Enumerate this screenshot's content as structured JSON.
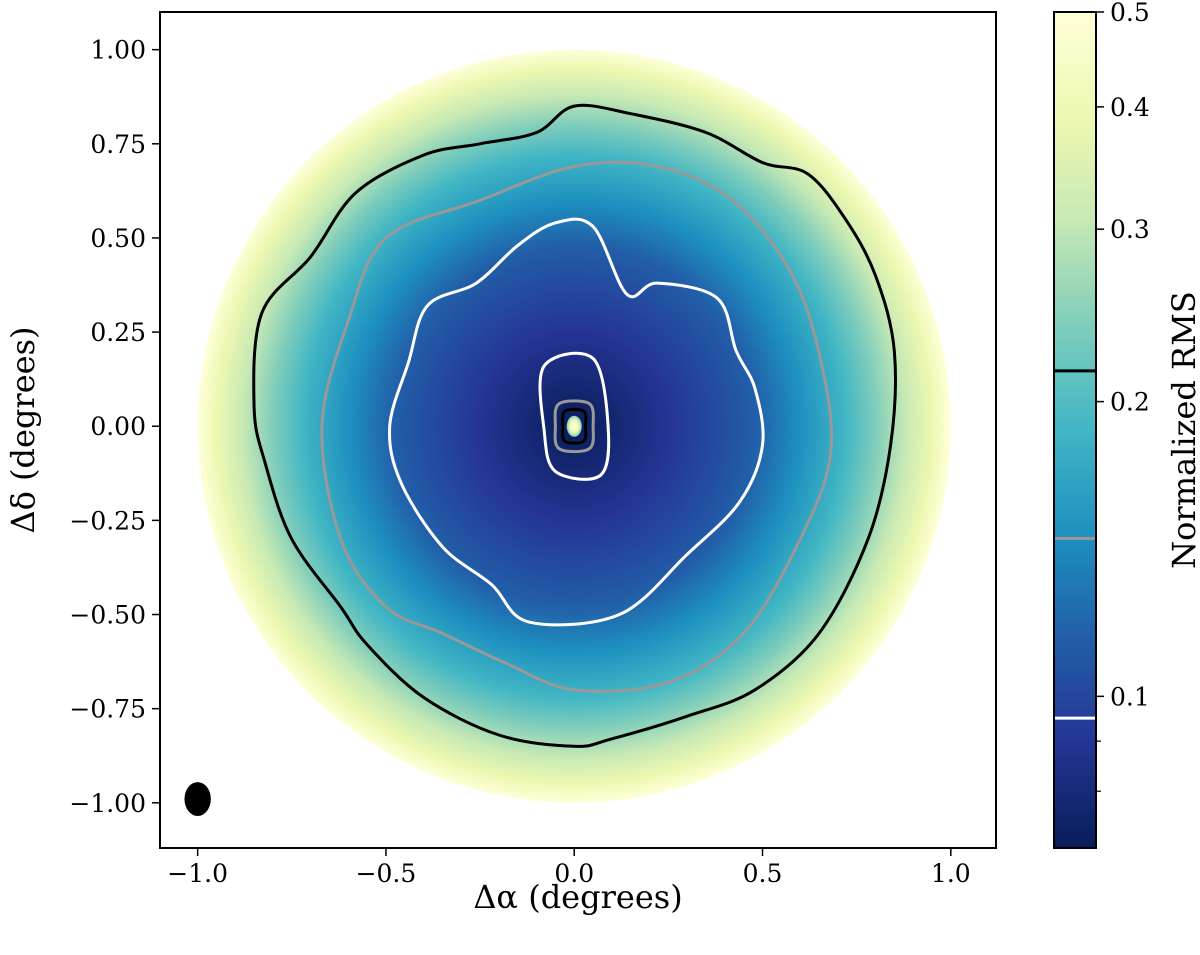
{
  "chart_data": {
    "type": "heatmap",
    "title": "",
    "xlabel": "Δα (degrees)",
    "ylabel": "Δδ (degrees)",
    "xlim": [
      -1.1,
      1.12
    ],
    "ylim": [
      -1.12,
      1.1
    ],
    "x_ticks": [
      -1.0,
      -0.5,
      0.0,
      0.5,
      1.0
    ],
    "x_tick_labels": [
      "−1.0",
      "−0.5",
      "0.0",
      "0.5",
      "1.0"
    ],
    "y_ticks": [
      1.0,
      0.75,
      0.5,
      0.25,
      0.0,
      -0.25,
      -0.5,
      -0.75,
      -1.0
    ],
    "y_tick_labels": [
      "1.00",
      "0.75",
      "0.50",
      "0.25",
      "0.00",
      "−0.25",
      "−0.50",
      "−0.75",
      "−1.00"
    ],
    "map": {
      "center": [
        0.0,
        0.0
      ],
      "field_radius_deg": 1.0,
      "value_at_edge": 0.5,
      "value_min": 0.07,
      "value_peak_center": 0.5
    },
    "colorbar": {
      "label": "Normalized RMS",
      "scale": "log",
      "range": [
        0.07,
        0.5
      ],
      "ticks": [
        0.1,
        0.2,
        0.3,
        0.4,
        0.5
      ],
      "tick_labels": [
        "0.1",
        "0.2",
        "0.3",
        "0.4",
        "0.5"
      ],
      "minor_ticks": [
        0.08,
        0.09
      ],
      "colormap": [
        "#081d58",
        "#253494",
        "#225ea8",
        "#1d91c0",
        "#41b6c4",
        "#7fcdbb",
        "#c7e9b4",
        "#edf8b1",
        "#ffffd9"
      ]
    },
    "contours": [
      {
        "level": 0.095,
        "color": "#ffffff",
        "label": "white contour",
        "outer_ring": [
          [
            -0.49,
            0.0
          ],
          [
            -0.44,
            0.17
          ],
          [
            -0.39,
            0.32
          ],
          [
            -0.26,
            0.38
          ],
          [
            -0.15,
            0.48
          ],
          [
            -0.05,
            0.54
          ],
          [
            0.05,
            0.53
          ],
          [
            0.14,
            0.35
          ],
          [
            0.22,
            0.38
          ],
          [
            0.38,
            0.34
          ],
          [
            0.43,
            0.2
          ],
          [
            0.48,
            0.1
          ],
          [
            0.5,
            -0.05
          ],
          [
            0.44,
            -0.2
          ],
          [
            0.3,
            -0.34
          ],
          [
            0.12,
            -0.5
          ],
          [
            -0.12,
            -0.52
          ],
          [
            -0.22,
            -0.42
          ],
          [
            -0.35,
            -0.32
          ],
          [
            -0.46,
            -0.15
          ]
        ],
        "inner_ring": [
          [
            -0.08,
            0.16
          ],
          [
            0.05,
            0.18
          ],
          [
            0.09,
            0.0
          ],
          [
            0.07,
            -0.13
          ],
          [
            -0.05,
            -0.12
          ],
          [
            -0.08,
            -0.01
          ]
        ]
      },
      {
        "level": 0.145,
        "color": "#999999",
        "label": "gray contour",
        "outer_ring": [
          [
            -0.67,
            0.0
          ],
          [
            -0.6,
            0.28
          ],
          [
            -0.5,
            0.5
          ],
          [
            -0.25,
            0.6
          ],
          [
            0.0,
            0.69
          ],
          [
            0.22,
            0.69
          ],
          [
            0.42,
            0.6
          ],
          [
            0.58,
            0.4
          ],
          [
            0.66,
            0.15
          ],
          [
            0.68,
            -0.08
          ],
          [
            0.6,
            -0.3
          ],
          [
            0.45,
            -0.55
          ],
          [
            0.25,
            -0.68
          ],
          [
            0.0,
            -0.7
          ],
          [
            -0.18,
            -0.63
          ],
          [
            -0.35,
            -0.55
          ],
          [
            -0.5,
            -0.48
          ],
          [
            -0.62,
            -0.3
          ]
        ],
        "inner_ring": [
          [
            -0.04,
            0.06
          ],
          [
            0.04,
            0.06
          ],
          [
            0.05,
            0.0
          ],
          [
            0.04,
            -0.06
          ],
          [
            -0.04,
            -0.06
          ],
          [
            -0.05,
            0.0
          ]
        ]
      },
      {
        "level": 0.215,
        "color": "#000000",
        "label": "black contour",
        "outer_ring": [
          [
            -0.85,
            0.05
          ],
          [
            -0.83,
            0.3
          ],
          [
            -0.7,
            0.45
          ],
          [
            -0.58,
            0.62
          ],
          [
            -0.4,
            0.72
          ],
          [
            -0.25,
            0.75
          ],
          [
            -0.1,
            0.78
          ],
          [
            0.0,
            0.85
          ],
          [
            0.15,
            0.83
          ],
          [
            0.35,
            0.78
          ],
          [
            0.5,
            0.7
          ],
          [
            0.62,
            0.67
          ],
          [
            0.72,
            0.55
          ],
          [
            0.8,
            0.4
          ],
          [
            0.85,
            0.2
          ],
          [
            0.84,
            -0.05
          ],
          [
            0.78,
            -0.3
          ],
          [
            0.65,
            -0.55
          ],
          [
            0.48,
            -0.7
          ],
          [
            0.3,
            -0.77
          ],
          [
            0.1,
            -0.83
          ],
          [
            0.0,
            -0.85
          ],
          [
            -0.2,
            -0.82
          ],
          [
            -0.4,
            -0.72
          ],
          [
            -0.55,
            -0.58
          ],
          [
            -0.62,
            -0.48
          ],
          [
            -0.75,
            -0.3
          ],
          [
            -0.82,
            -0.1
          ]
        ],
        "inner_ring": [
          [
            -0.025,
            0.04
          ],
          [
            0.025,
            0.04
          ],
          [
            0.03,
            0.0
          ],
          [
            0.025,
            -0.04
          ],
          [
            -0.025,
            -0.04
          ],
          [
            -0.03,
            0.0
          ]
        ]
      }
    ],
    "beam": {
      "x": -1.0,
      "y": -0.99,
      "major_deg": 0.09,
      "minor_deg": 0.07
    }
  }
}
